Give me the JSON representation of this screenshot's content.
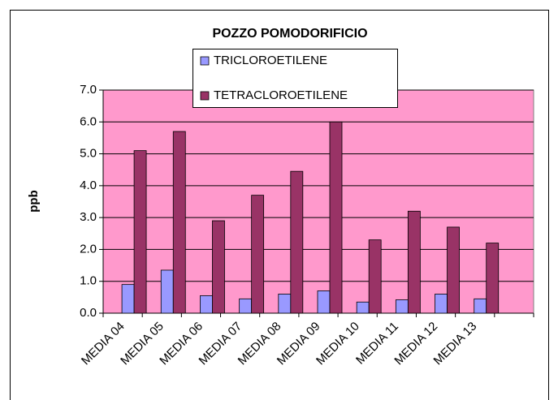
{
  "chart_data": {
    "type": "bar",
    "title": "POZZO POMODORIFICIO",
    "y_label": "ppb",
    "categories": [
      "MEDIA 04",
      "MEDIA 05",
      "MEDIA 06",
      "MEDIA 07",
      "MEDIA 08",
      "MEDIA 09",
      "MEDIA 10",
      "MEDIA 11",
      "MEDIA 12",
      "MEDIA 13",
      null
    ],
    "series": [
      {
        "name": "TRICLOROETILENE",
        "color": "#9999ff",
        "values": [
          0.9,
          1.35,
          0.55,
          0.45,
          0.6,
          0.7,
          0.35,
          0.42,
          0.6,
          0.45,
          null
        ]
      },
      {
        "name": "TETRACLOROETILENE",
        "color": "#993366",
        "values": [
          5.1,
          5.7,
          2.9,
          3.7,
          4.45,
          6.0,
          2.3,
          3.2,
          2.7,
          2.2,
          null
        ]
      }
    ],
    "ylim": [
      0,
      7
    ],
    "yticks": [
      {
        "value": 0,
        "label": "0.0"
      },
      {
        "value": 1,
        "label": "1.0"
      },
      {
        "value": 2,
        "label": "2.0"
      },
      {
        "value": 3,
        "label": "3.0"
      },
      {
        "value": 4,
        "label": "4.0"
      },
      {
        "value": 5,
        "label": "5.0"
      },
      {
        "value": 6,
        "label": "6.0"
      },
      {
        "value": 7,
        "label": "7.0"
      }
    ],
    "grid": true,
    "plot_background": "#ff99cc",
    "legend": "top"
  }
}
